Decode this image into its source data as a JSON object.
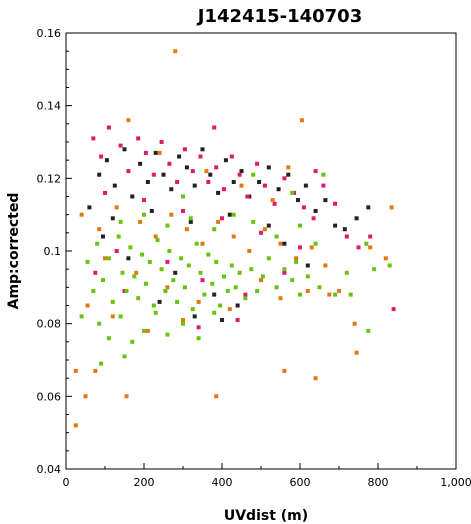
{
  "chart_data": {
    "type": "scatter",
    "title": "J142415-140703",
    "xlabel": "UVdist (m)",
    "ylabel": "Amp:corrected",
    "xlim": [
      0,
      1000
    ],
    "ylim": [
      0.04,
      0.16
    ],
    "x_ticks": [
      "0",
      "200",
      "400",
      "600",
      "800",
      "1,000"
    ],
    "y_ticks": [
      "0.04",
      "0.06",
      "0.08",
      "0.1",
      "0.12",
      "0.14",
      "0.16"
    ],
    "x_tick_values": [
      0,
      200,
      400,
      600,
      800,
      1000
    ],
    "y_tick_values": [
      0.04,
      0.06,
      0.08,
      0.1,
      0.12,
      0.14,
      0.16
    ],
    "grid": false,
    "series": [
      {
        "color": "#222222",
        "points": [
          [
            60,
            0.112
          ],
          [
            85,
            0.121
          ],
          [
            105,
            0.125
          ],
          [
            125,
            0.118
          ],
          [
            150,
            0.128
          ],
          [
            170,
            0.115
          ],
          [
            190,
            0.124
          ],
          [
            210,
            0.119
          ],
          [
            230,
            0.127
          ],
          [
            250,
            0.121
          ],
          [
            270,
            0.117
          ],
          [
            290,
            0.126
          ],
          [
            310,
            0.123
          ],
          [
            330,
            0.118
          ],
          [
            350,
            0.128
          ],
          [
            370,
            0.121
          ],
          [
            390,
            0.116
          ],
          [
            410,
            0.125
          ],
          [
            430,
            0.119
          ],
          [
            450,
            0.122
          ],
          [
            470,
            0.115
          ],
          [
            495,
            0.119
          ],
          [
            520,
            0.123
          ],
          [
            545,
            0.117
          ],
          [
            570,
            0.121
          ],
          [
            595,
            0.114
          ],
          [
            615,
            0.118
          ],
          [
            640,
            0.111
          ],
          [
            665,
            0.114
          ],
          [
            690,
            0.107
          ],
          [
            715,
            0.106
          ],
          [
            745,
            0.109
          ],
          [
            775,
            0.112
          ],
          [
            120,
            0.109
          ],
          [
            220,
            0.111
          ],
          [
            320,
            0.108
          ],
          [
            420,
            0.11
          ],
          [
            520,
            0.107
          ],
          [
            160,
            0.098
          ],
          [
            280,
            0.094
          ],
          [
            380,
            0.088
          ],
          [
            440,
            0.085
          ],
          [
            560,
            0.102
          ],
          [
            620,
            0.096
          ],
          [
            95,
            0.104
          ],
          [
            240,
            0.086
          ],
          [
            330,
            0.082
          ],
          [
            400,
            0.081
          ]
        ]
      },
      {
        "color": "#e0196e",
        "points": [
          [
            70,
            0.131
          ],
          [
            90,
            0.126
          ],
          [
            110,
            0.134
          ],
          [
            140,
            0.129
          ],
          [
            160,
            0.122
          ],
          [
            185,
            0.131
          ],
          [
            205,
            0.127
          ],
          [
            225,
            0.121
          ],
          [
            245,
            0.13
          ],
          [
            265,
            0.124
          ],
          [
            285,
            0.119
          ],
          [
            305,
            0.128
          ],
          [
            325,
            0.122
          ],
          [
            345,
            0.126
          ],
          [
            365,
            0.119
          ],
          [
            385,
            0.123
          ],
          [
            405,
            0.117
          ],
          [
            425,
            0.126
          ],
          [
            445,
            0.121
          ],
          [
            465,
            0.115
          ],
          [
            490,
            0.124
          ],
          [
            510,
            0.118
          ],
          [
            535,
            0.113
          ],
          [
            560,
            0.12
          ],
          [
            585,
            0.116
          ],
          [
            610,
            0.112
          ],
          [
            635,
            0.109
          ],
          [
            660,
            0.118
          ],
          [
            690,
            0.113
          ],
          [
            720,
            0.104
          ],
          [
            750,
            0.101
          ],
          [
            780,
            0.104
          ],
          [
            840,
            0.084
          ],
          [
            100,
            0.116
          ],
          [
            200,
            0.114
          ],
          [
            300,
            0.111
          ],
          [
            400,
            0.109
          ],
          [
            500,
            0.105
          ],
          [
            600,
            0.101
          ],
          [
            130,
            0.1
          ],
          [
            260,
            0.097
          ],
          [
            350,
            0.092
          ],
          [
            460,
            0.088
          ],
          [
            560,
            0.094
          ],
          [
            150,
            0.089
          ],
          [
            340,
            0.079
          ],
          [
            440,
            0.081
          ],
          [
            75,
            0.094
          ],
          [
            640,
            0.122
          ],
          [
            380,
            0.134
          ]
        ]
      },
      {
        "color": "#e07a10",
        "points": [
          [
            280,
            0.155
          ],
          [
            160,
            0.136
          ],
          [
            240,
            0.127
          ],
          [
            360,
            0.122
          ],
          [
            450,
            0.118
          ],
          [
            530,
            0.114
          ],
          [
            570,
            0.123
          ],
          [
            605,
            0.136
          ],
          [
            40,
            0.11
          ],
          [
            85,
            0.106
          ],
          [
            130,
            0.112
          ],
          [
            190,
            0.108
          ],
          [
            230,
            0.104
          ],
          [
            270,
            0.11
          ],
          [
            310,
            0.106
          ],
          [
            350,
            0.102
          ],
          [
            390,
            0.108
          ],
          [
            430,
            0.104
          ],
          [
            470,
            0.1
          ],
          [
            510,
            0.106
          ],
          [
            550,
            0.102
          ],
          [
            590,
            0.098
          ],
          [
            630,
            0.101
          ],
          [
            665,
            0.096
          ],
          [
            700,
            0.089
          ],
          [
            740,
            0.08
          ],
          [
            780,
            0.101
          ],
          [
            835,
            0.112
          ],
          [
            100,
            0.098
          ],
          [
            180,
            0.094
          ],
          [
            260,
            0.09
          ],
          [
            340,
            0.086
          ],
          [
            420,
            0.084
          ],
          [
            500,
            0.092
          ],
          [
            550,
            0.087
          ],
          [
            620,
            0.089
          ],
          [
            55,
            0.085
          ],
          [
            120,
            0.082
          ],
          [
            210,
            0.078
          ],
          [
            300,
            0.081
          ],
          [
            25,
            0.067
          ],
          [
            50,
            0.06
          ],
          [
            75,
            0.067
          ],
          [
            155,
            0.06
          ],
          [
            385,
            0.06
          ],
          [
            560,
            0.067
          ],
          [
            640,
            0.065
          ],
          [
            745,
            0.072
          ],
          [
            675,
            0.088
          ],
          [
            25,
            0.052
          ],
          [
            820,
            0.098
          ]
        ]
      },
      {
        "color": "#66c40f",
        "points": [
          [
            55,
            0.097
          ],
          [
            70,
            0.089
          ],
          [
            80,
            0.102
          ],
          [
            95,
            0.092
          ],
          [
            110,
            0.098
          ],
          [
            120,
            0.086
          ],
          [
            135,
            0.104
          ],
          [
            145,
            0.094
          ],
          [
            155,
            0.089
          ],
          [
            165,
            0.101
          ],
          [
            175,
            0.093
          ],
          [
            185,
            0.087
          ],
          [
            195,
            0.099
          ],
          [
            205,
            0.091
          ],
          [
            215,
            0.097
          ],
          [
            225,
            0.085
          ],
          [
            235,
            0.103
          ],
          [
            245,
            0.095
          ],
          [
            255,
            0.089
          ],
          [
            265,
            0.1
          ],
          [
            275,
            0.092
          ],
          [
            285,
            0.086
          ],
          [
            295,
            0.098
          ],
          [
            305,
            0.09
          ],
          [
            315,
            0.096
          ],
          [
            325,
            0.084
          ],
          [
            335,
            0.102
          ],
          [
            345,
            0.094
          ],
          [
            355,
            0.088
          ],
          [
            365,
            0.099
          ],
          [
            375,
            0.091
          ],
          [
            385,
            0.097
          ],
          [
            395,
            0.085
          ],
          [
            405,
            0.093
          ],
          [
            415,
            0.089
          ],
          [
            425,
            0.096
          ],
          [
            435,
            0.09
          ],
          [
            445,
            0.094
          ],
          [
            460,
            0.087
          ],
          [
            475,
            0.095
          ],
          [
            490,
            0.089
          ],
          [
            505,
            0.093
          ],
          [
            520,
            0.098
          ],
          [
            540,
            0.09
          ],
          [
            560,
            0.095
          ],
          [
            580,
            0.092
          ],
          [
            600,
            0.088
          ],
          [
            620,
            0.093
          ],
          [
            650,
            0.09
          ],
          [
            690,
            0.088
          ],
          [
            720,
            0.094
          ],
          [
            770,
            0.102
          ],
          [
            790,
            0.095
          ],
          [
            830,
            0.096
          ],
          [
            85,
            0.08
          ],
          [
            110,
            0.076
          ],
          [
            140,
            0.082
          ],
          [
            170,
            0.075
          ],
          [
            200,
            0.078
          ],
          [
            230,
            0.083
          ],
          [
            260,
            0.077
          ],
          [
            300,
            0.08
          ],
          [
            340,
            0.076
          ],
          [
            380,
            0.083
          ],
          [
            140,
            0.108
          ],
          [
            200,
            0.11
          ],
          [
            260,
            0.107
          ],
          [
            320,
            0.109
          ],
          [
            380,
            0.106
          ],
          [
            430,
            0.11
          ],
          [
            480,
            0.108
          ],
          [
            540,
            0.104
          ],
          [
            600,
            0.107
          ],
          [
            300,
            0.115
          ],
          [
            480,
            0.121
          ],
          [
            580,
            0.116
          ],
          [
            660,
            0.121
          ],
          [
            730,
            0.088
          ],
          [
            775,
            0.078
          ],
          [
            90,
            0.069
          ],
          [
            40,
            0.082
          ],
          [
            150,
            0.071
          ],
          [
            590,
            0.097
          ],
          [
            640,
            0.102
          ]
        ]
      }
    ]
  }
}
